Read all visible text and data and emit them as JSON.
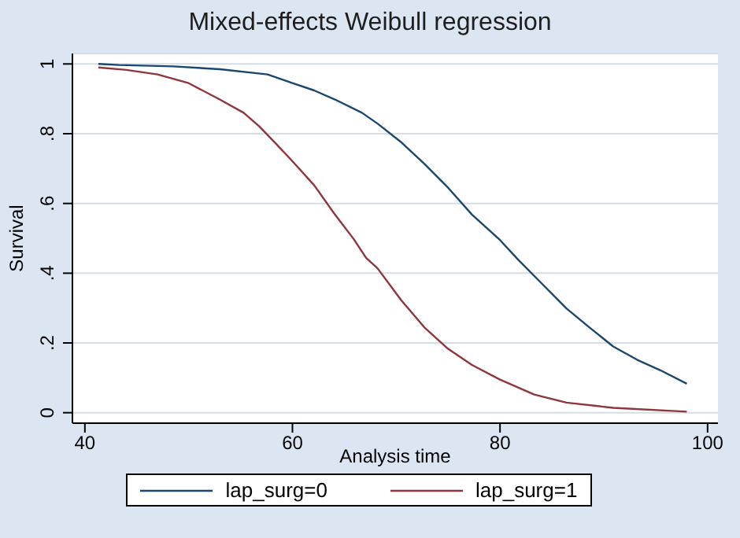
{
  "chart_data": {
    "type": "line",
    "title": "Mixed-effects Weibull regression",
    "xlabel": "Analysis time",
    "ylabel": "Survival",
    "xlim": [
      38.8,
      101
    ],
    "xticks": [
      40,
      60,
      80,
      100
    ],
    "ylim": [
      -0.03,
      1.03
    ],
    "yticks": [
      {
        "value": 0,
        "label": "0"
      },
      {
        "value": 0.2,
        "label": ".2"
      },
      {
        "value": 0.4,
        "label": ".4"
      },
      {
        "value": 0.6,
        "label": ".6"
      },
      {
        "value": 0.8,
        "label": ".8"
      },
      {
        "value": 1,
        "label": "1"
      }
    ],
    "grid": "y",
    "legend": "bottom",
    "marker": "none",
    "line_style": "solid",
    "series": [
      {
        "name": "lap_surg=0",
        "color": "#1a476f",
        "x": [
          41.3,
          43.3,
          48.5,
          53,
          57.6,
          60,
          62.1,
          64.1,
          66.7,
          68.2,
          70.5,
          72.7,
          75,
          77.3,
          80,
          81.8,
          84.1,
          86.4,
          88.6,
          90.9,
          93.2,
          95.5,
          98
        ],
        "values": [
          1.0,
          0.997,
          0.993,
          0.985,
          0.97,
          0.945,
          0.924,
          0.898,
          0.86,
          0.829,
          0.775,
          0.714,
          0.645,
          0.568,
          0.495,
          0.437,
          0.368,
          0.299,
          0.245,
          0.19,
          0.152,
          0.121,
          0.083
        ]
      },
      {
        "name": "lap_surg=1",
        "color": "#90353b",
        "x": [
          41.3,
          44,
          47,
          50,
          53,
          55.3,
          56.8,
          58.3,
          60,
          62.1,
          64.1,
          65.9,
          67.1,
          68.2,
          70.5,
          72.7,
          75,
          77.3,
          80,
          83.3,
          86.4,
          90.9,
          98
        ],
        "values": [
          0.99,
          0.983,
          0.97,
          0.945,
          0.898,
          0.86,
          0.821,
          0.775,
          0.721,
          0.652,
          0.568,
          0.498,
          0.444,
          0.414,
          0.322,
          0.245,
          0.183,
          0.137,
          0.095,
          0.052,
          0.029,
          0.014,
          0.003
        ]
      }
    ]
  }
}
